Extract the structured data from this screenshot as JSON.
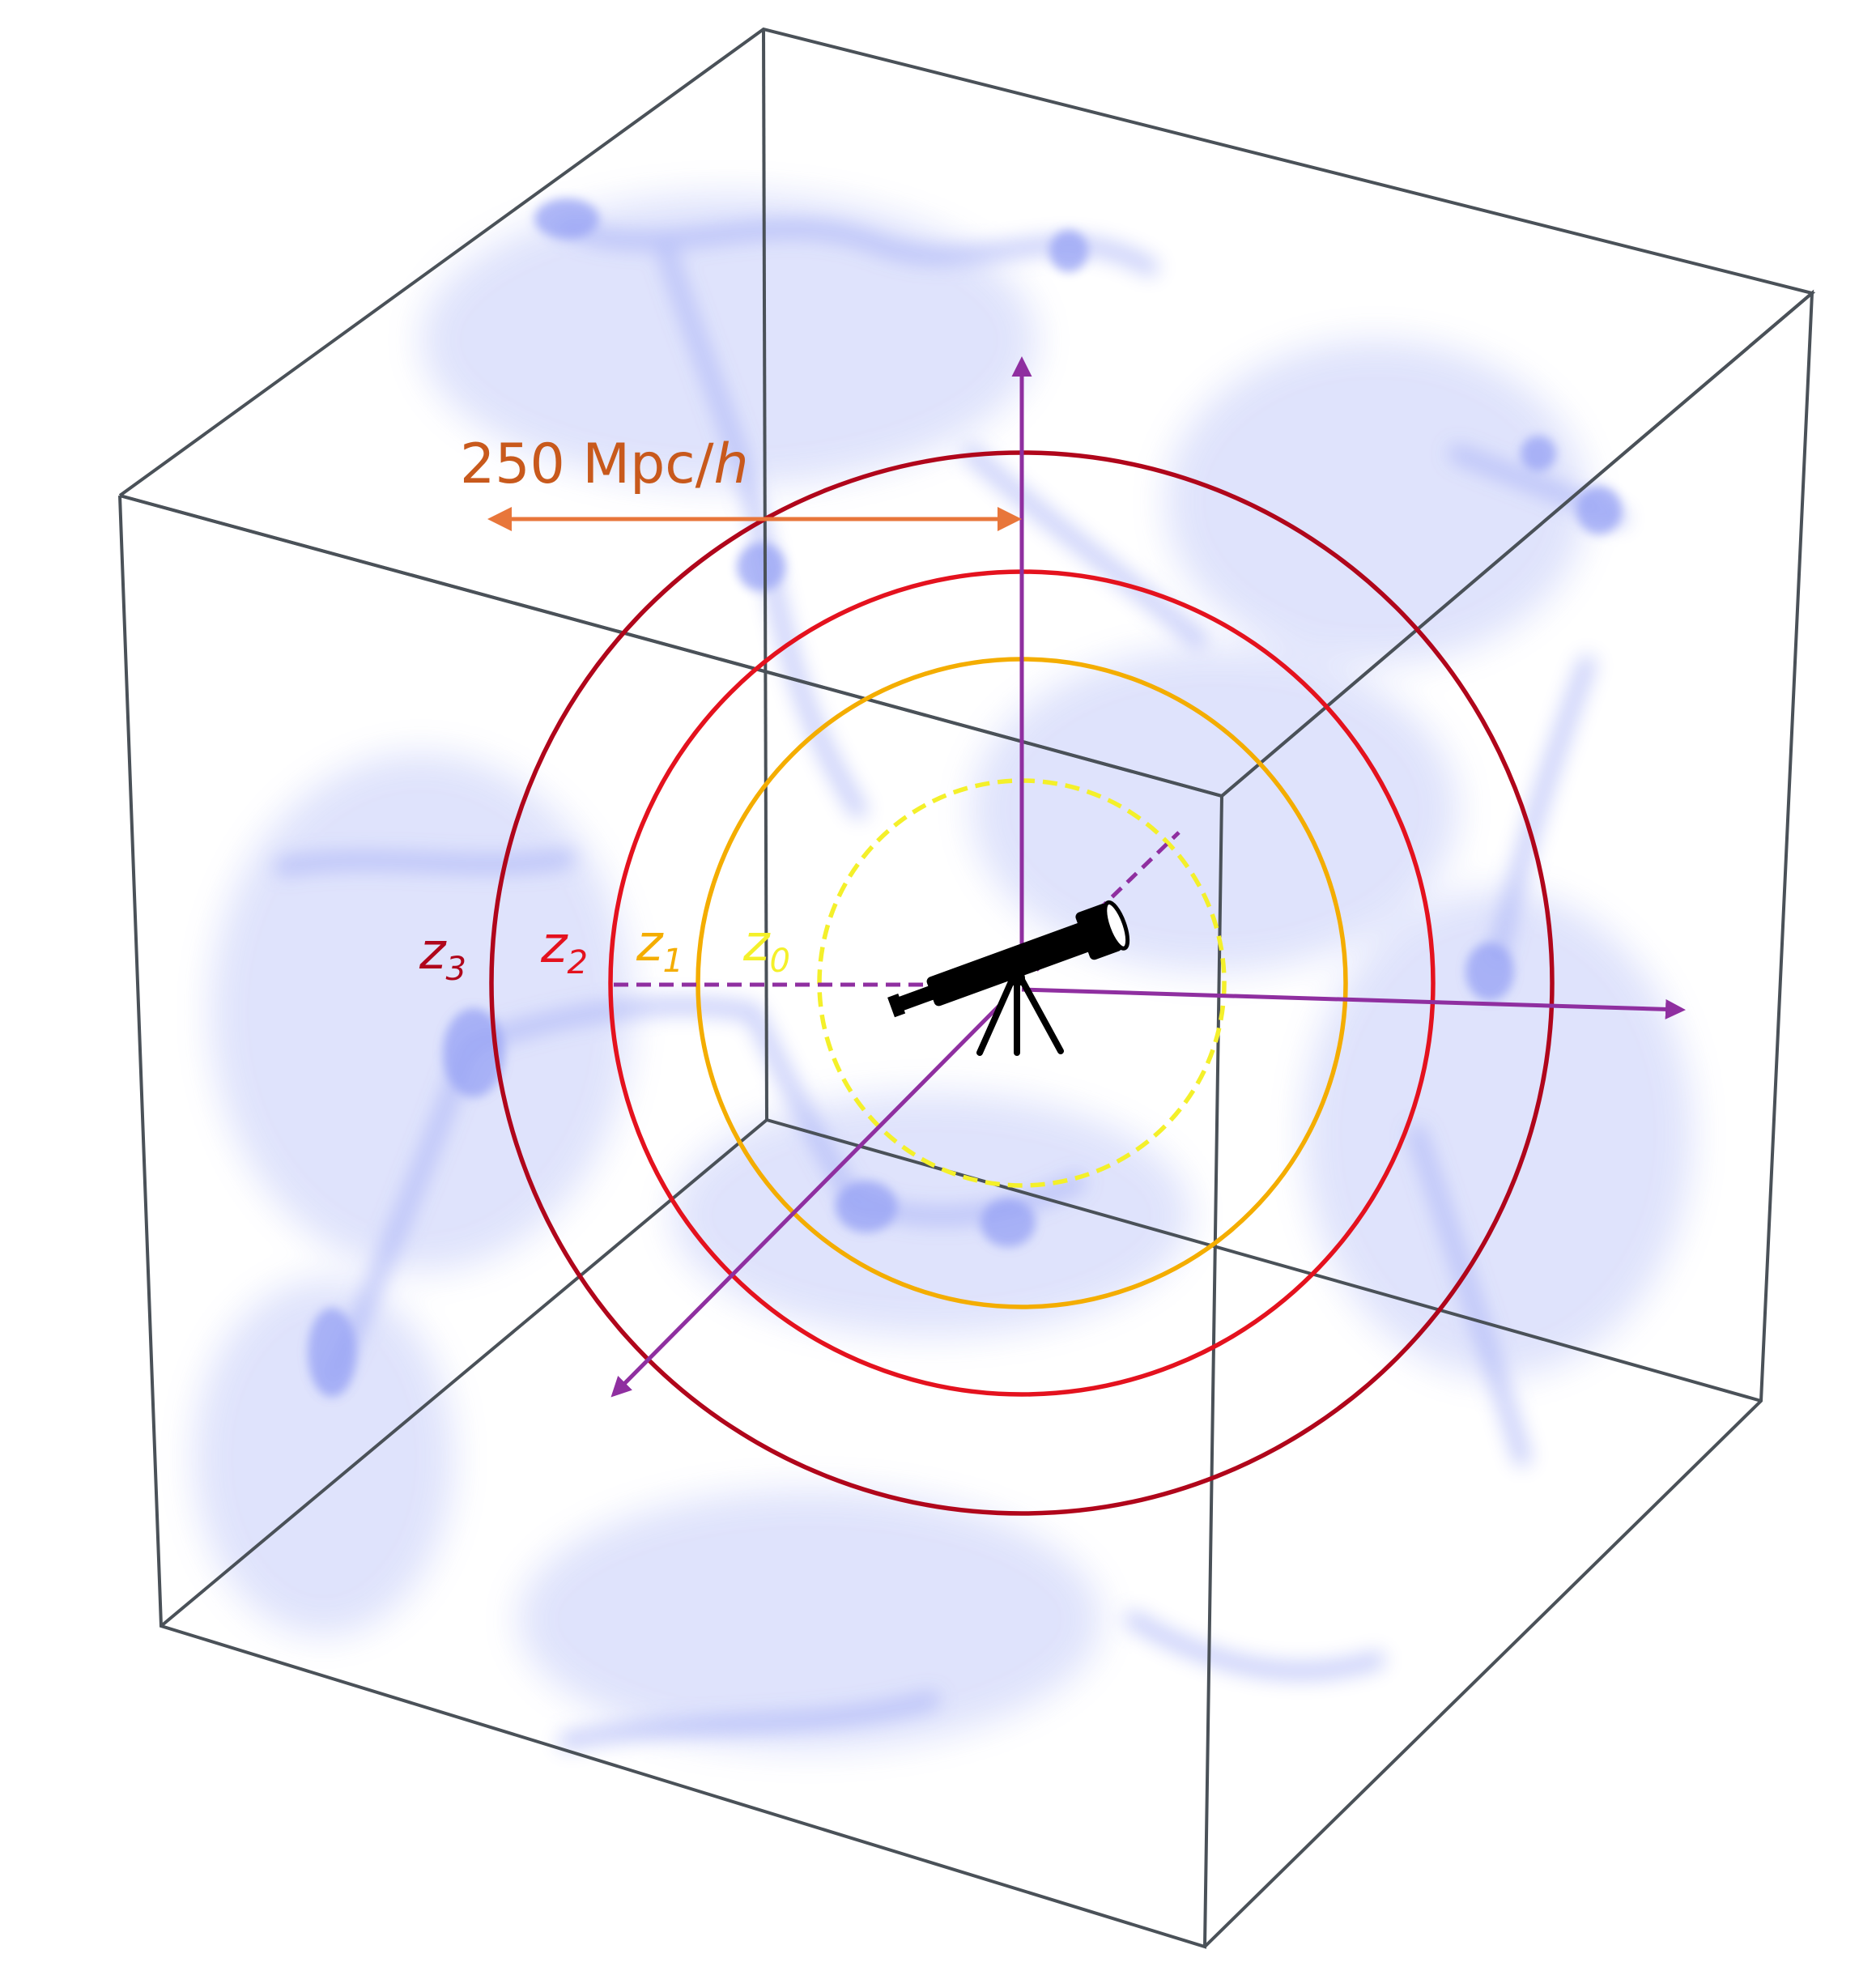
{
  "scale_bar": {
    "prefix": "250 Mpc/",
    "unit": "h",
    "color": "#c8591c",
    "arrow_color": "#e8763a"
  },
  "shells": [
    {
      "id": "z0",
      "letter": "z",
      "sub": "0",
      "color": "#f4f02a",
      "style": "dashed"
    },
    {
      "id": "z1",
      "letter": "z",
      "sub": "1",
      "color": "#f4ad00",
      "style": "solid"
    },
    {
      "id": "z2",
      "letter": "z",
      "sub": "2",
      "color": "#e4121e",
      "style": "solid"
    },
    {
      "id": "z3",
      "letter": "z",
      "sub": "3",
      "color": "#b0061b",
      "style": "solid"
    }
  ],
  "colors": {
    "axes": "#8f2fa0",
    "cube_edges": "#4a5158",
    "cosmic_web": "#5a6ef0",
    "observer": "#000000"
  },
  "icons": {
    "observer": "telescope-icon"
  }
}
